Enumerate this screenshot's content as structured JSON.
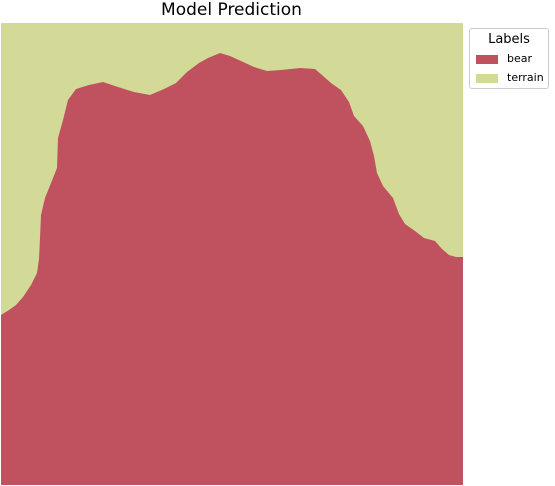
{
  "figure": {
    "title": "Model Prediction"
  },
  "legend": {
    "title": "Labels",
    "items": [
      {
        "label": "bear",
        "color": "#c05260"
      },
      {
        "label": "terrain",
        "color": "#d3d997"
      }
    ]
  },
  "segmentation": {
    "background_class": "terrain",
    "foreground_class": "bear"
  }
}
